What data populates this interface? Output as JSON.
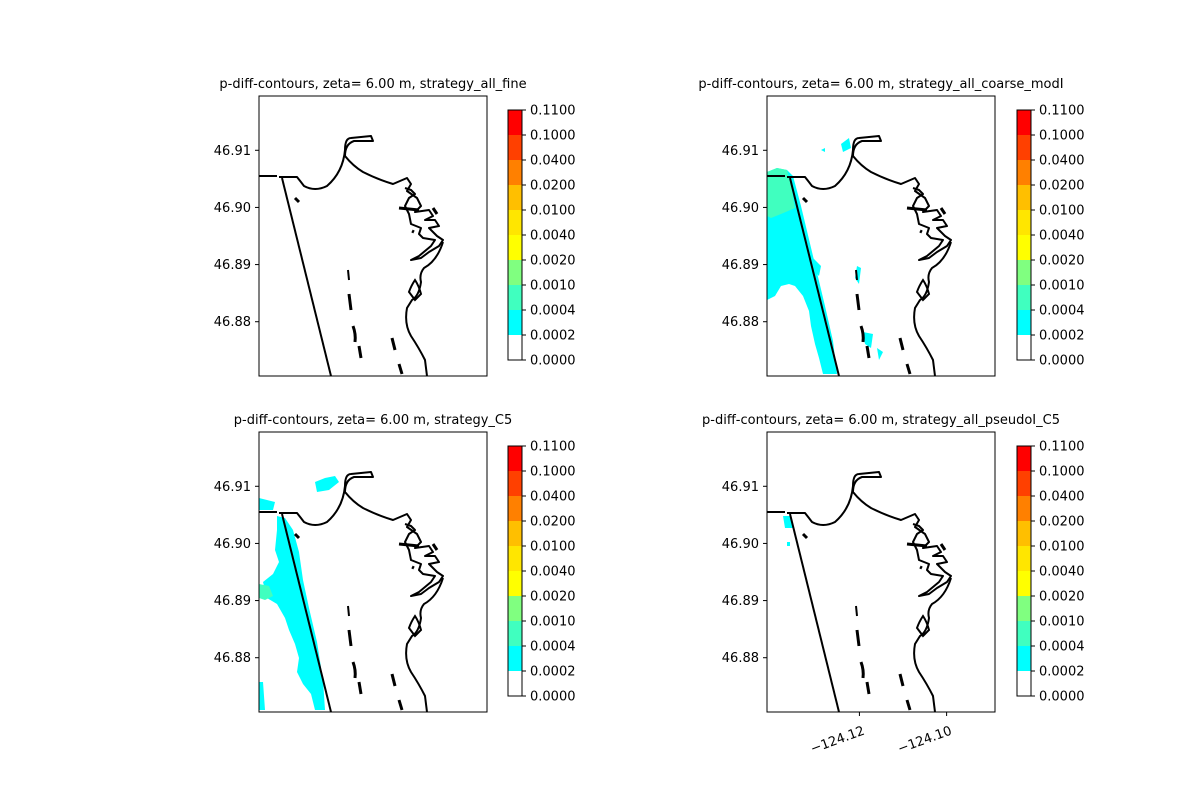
{
  "figure": {
    "title": "",
    "colorbar": {
      "levels": [
        "0.1100",
        "0.1000",
        "0.0400",
        "0.0200",
        "0.0100",
        "0.0040",
        "0.0020",
        "0.0010",
        "0.0004",
        "0.0002",
        "0.0000"
      ],
      "colors": [
        "#ff0000",
        "#ff4000",
        "#ff8000",
        "#ffbf00",
        "#ffe600",
        "#ffff00",
        "#bfff40",
        "#80ff80",
        "#40ffbf",
        "#00ffff"
      ],
      "bottom_band_color": "#ffffff"
    },
    "y_ticks": [
      "46.91",
      "46.90",
      "46.89",
      "46.88"
    ],
    "x_ticks": [
      "−124.12",
      "−124.10"
    ],
    "line_color": "#000000"
  },
  "chart_data": [
    {
      "type": "heatmap",
      "title": "p-diff-contours, zeta= 6.00 m, strategy_all_fine",
      "xlabel": "",
      "ylabel": "",
      "x_ticks": [],
      "y_ticks": [
        46.91,
        46.9,
        46.89,
        46.88
      ],
      "ylim": [
        46.8705,
        46.9195
      ],
      "xlim": [
        -124.1412,
        -124.0889
      ],
      "coverage": "none"
    },
    {
      "type": "heatmap",
      "title": "p-diff-contours, zeta= 6.00 m, strategy_all_coarse_modI",
      "xlabel": "",
      "ylabel": "",
      "x_ticks": [],
      "y_ticks": [
        46.91,
        46.9,
        46.89,
        46.88
      ],
      "ylim": [
        46.8705,
        46.9195
      ],
      "xlim": [
        -124.1412,
        -124.0889
      ],
      "coverage": "offshore band along west boundary, mostly 0.0002-0.0004 with a 0.0004-0.0010 patch near 46.90"
    },
    {
      "type": "heatmap",
      "title": "p-diff-contours, zeta= 6.00 m, strategy_C5",
      "xlabel": "",
      "ylabel": "",
      "x_ticks": [],
      "y_ticks": [
        46.91,
        46.9,
        46.89,
        46.88
      ],
      "ylim": [
        46.8705,
        46.9195
      ],
      "xlim": [
        -124.1412,
        -124.0889
      ],
      "coverage": "meandering band west of shoreline, 0.0002-0.0004 with small 0.0004-0.0010 spot near 46.892"
    },
    {
      "type": "heatmap",
      "title": "p-diff-contours, zeta= 6.00 m, strategy_all_pseudoI_C5",
      "xlabel": "",
      "ylabel": "",
      "x_ticks": [
        -124.12,
        -124.1
      ],
      "y_ticks": [
        46.91,
        46.9,
        46.89,
        46.88
      ],
      "ylim": [
        46.8705,
        46.9195
      ],
      "xlim": [
        -124.1412,
        -124.0889
      ],
      "coverage": "tiny patch near 46.904, 0.0002-0.0004"
    }
  ]
}
